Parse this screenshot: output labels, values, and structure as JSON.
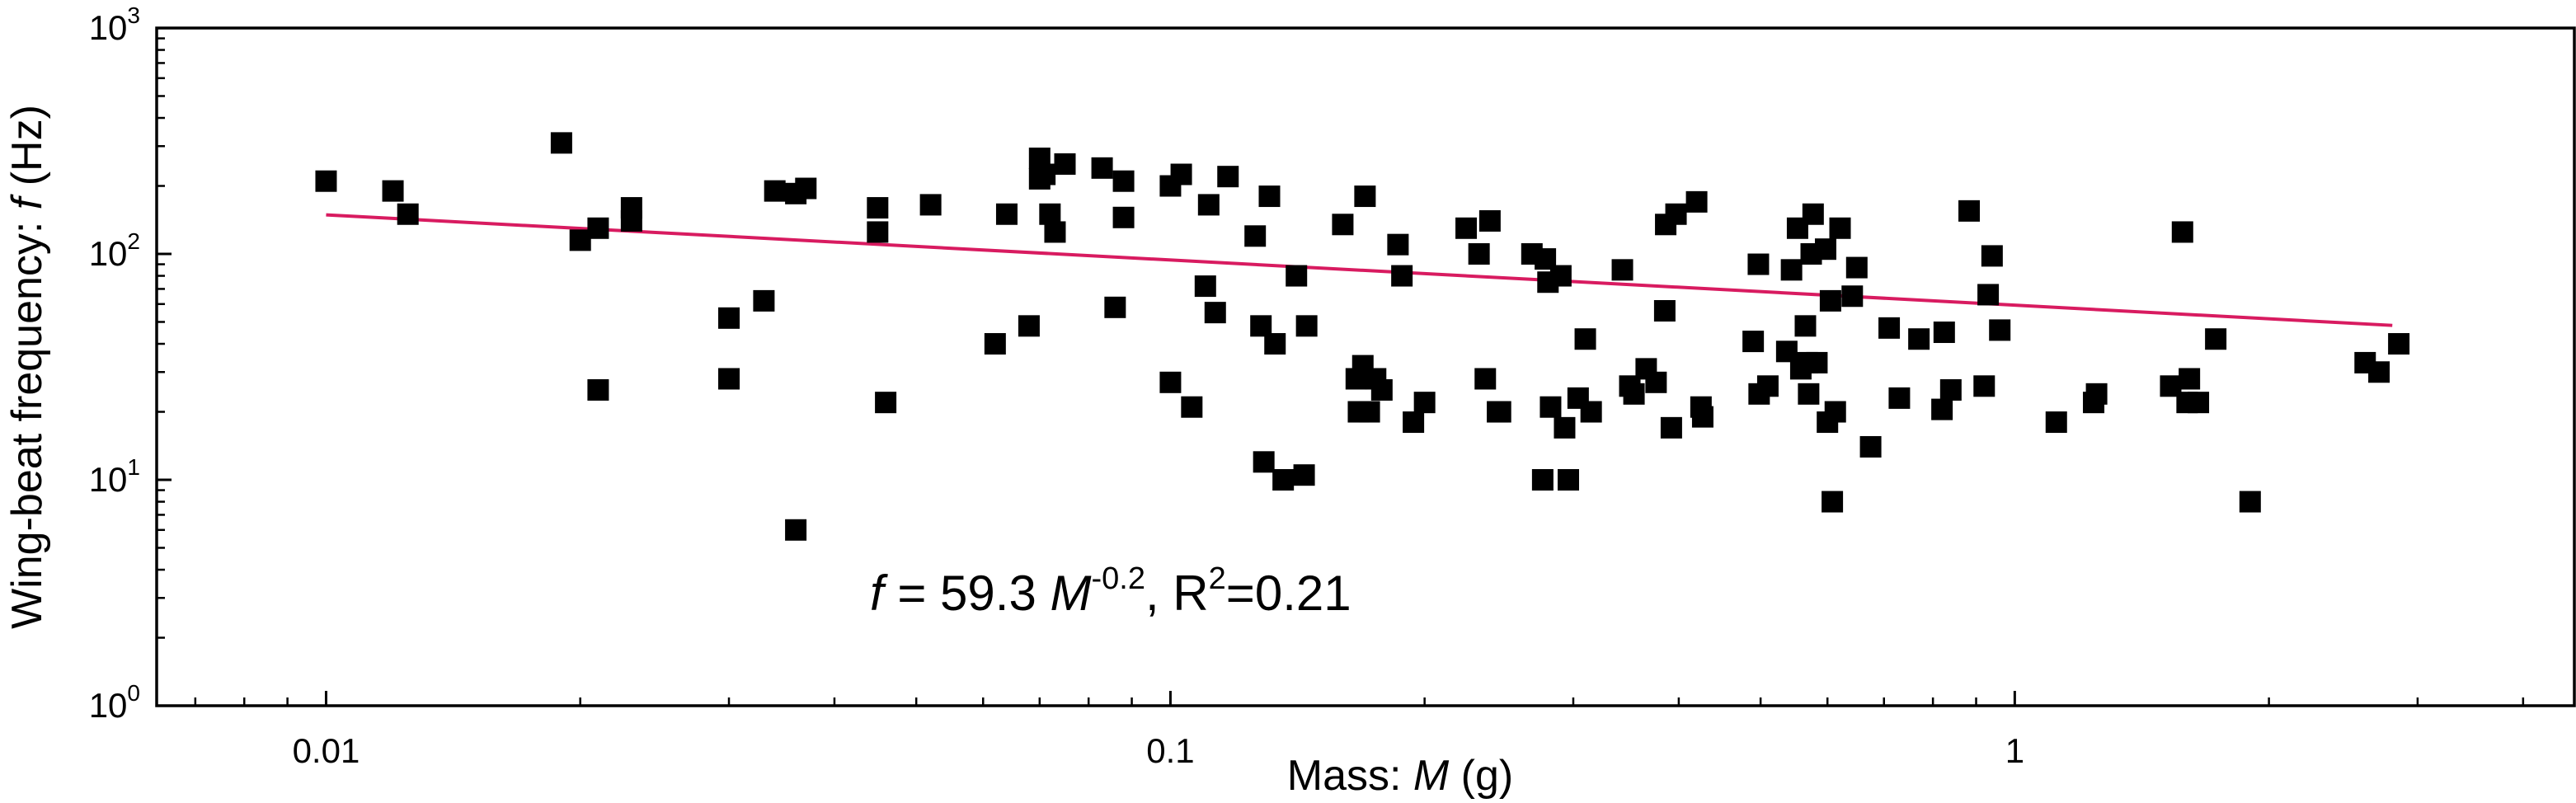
{
  "chart_data": {
    "type": "scatter",
    "xlabel_prefix": "Mass: ",
    "xlabel_var": "M",
    "xlabel_suffix": " (g)",
    "ylabel_prefix": "Wing-beat frequency: ",
    "ylabel_var": "f",
    "ylabel_suffix": " (Hz)",
    "xscale": "log",
    "yscale": "log",
    "xlim": [
      0.0063,
      4.6
    ],
    "ylim": [
      1,
      1000
    ],
    "x_ticks": [
      {
        "value": 0.01,
        "label": "0.01"
      },
      {
        "value": 0.1,
        "label": "0.1"
      },
      {
        "value": 1,
        "label": "1"
      }
    ],
    "y_ticks": [
      {
        "value": 1,
        "base": "10",
        "exp": "0"
      },
      {
        "value": 10,
        "base": "10",
        "exp": "1"
      },
      {
        "value": 100,
        "base": "10",
        "exp": "2"
      },
      {
        "value": 1000,
        "base": "10",
        "exp": "3"
      }
    ],
    "marker_color": "#000000",
    "fit_color": "#d81b60",
    "annotation_color": "#e8000b",
    "annotation": {
      "f": "f",
      "eq": " = 59.3 ",
      "M": "M",
      "exp": "-0.2",
      "r2a": ", R",
      "r2sup": "2",
      "r2b": "=0.21"
    },
    "fit": {
      "a": 59.3,
      "b": -0.2,
      "x_range": [
        0.01,
        2.8
      ]
    },
    "points": [
      [
        0.01,
        210
      ],
      [
        0.012,
        190
      ],
      [
        0.0125,
        150
      ],
      [
        0.019,
        310
      ],
      [
        0.02,
        115
      ],
      [
        0.021,
        130
      ],
      [
        0.021,
        25
      ],
      [
        0.023,
        160
      ],
      [
        0.023,
        140
      ],
      [
        0.03,
        52
      ],
      [
        0.03,
        28
      ],
      [
        0.033,
        62
      ],
      [
        0.034,
        190
      ],
      [
        0.036,
        6
      ],
      [
        0.036,
        185
      ],
      [
        0.037,
        195
      ],
      [
        0.045,
        160
      ],
      [
        0.045,
        125
      ],
      [
        0.046,
        22
      ],
      [
        0.052,
        165
      ],
      [
        0.062,
        40
      ],
      [
        0.064,
        150
      ],
      [
        0.068,
        48
      ],
      [
        0.07,
        265
      ],
      [
        0.07,
        215
      ],
      [
        0.071,
        225
      ],
      [
        0.072,
        150
      ],
      [
        0.073,
        125
      ],
      [
        0.075,
        250
      ],
      [
        0.083,
        240
      ],
      [
        0.086,
        58
      ],
      [
        0.088,
        210
      ],
      [
        0.088,
        145
      ],
      [
        0.1,
        200
      ],
      [
        0.1,
        27
      ],
      [
        0.103,
        225
      ],
      [
        0.106,
        21
      ],
      [
        0.11,
        72
      ],
      [
        0.111,
        165
      ],
      [
        0.113,
        55
      ],
      [
        0.117,
        220
      ],
      [
        0.126,
        120
      ],
      [
        0.128,
        48
      ],
      [
        0.129,
        12
      ],
      [
        0.131,
        180
      ],
      [
        0.133,
        40
      ],
      [
        0.136,
        10
      ],
      [
        0.141,
        80
      ],
      [
        0.144,
        10.5
      ],
      [
        0.145,
        48
      ],
      [
        0.16,
        135
      ],
      [
        0.166,
        28
      ],
      [
        0.167,
        20
      ],
      [
        0.169,
        32
      ],
      [
        0.17,
        180
      ],
      [
        0.172,
        20
      ],
      [
        0.175,
        28
      ],
      [
        0.178,
        25
      ],
      [
        0.186,
        110
      ],
      [
        0.188,
        80
      ],
      [
        0.194,
        18
      ],
      [
        0.2,
        22
      ],
      [
        0.224,
        130
      ],
      [
        0.232,
        100
      ],
      [
        0.236,
        28
      ],
      [
        0.239,
        140
      ],
      [
        0.244,
        20
      ],
      [
        0.246,
        20
      ],
      [
        0.268,
        100
      ],
      [
        0.276,
        10
      ],
      [
        0.278,
        95
      ],
      [
        0.28,
        75
      ],
      [
        0.282,
        21
      ],
      [
        0.29,
        80
      ],
      [
        0.293,
        17
      ],
      [
        0.296,
        10
      ],
      [
        0.304,
        23
      ],
      [
        0.31,
        42
      ],
      [
        0.315,
        20
      ],
      [
        0.343,
        85
      ],
      [
        0.35,
        26
      ],
      [
        0.354,
        24
      ],
      [
        0.366,
        31
      ],
      [
        0.376,
        27
      ],
      [
        0.385,
        56
      ],
      [
        0.386,
        135
      ],
      [
        0.392,
        17
      ],
      [
        0.397,
        150
      ],
      [
        0.42,
        170
      ],
      [
        0.425,
        21
      ],
      [
        0.427,
        19
      ],
      [
        0.49,
        41
      ],
      [
        0.497,
        90
      ],
      [
        0.498,
        24
      ],
      [
        0.51,
        26
      ],
      [
        0.537,
        37
      ],
      [
        0.544,
        85
      ],
      [
        0.553,
        130
      ],
      [
        0.558,
        31
      ],
      [
        0.565,
        48
      ],
      [
        0.568,
        33
      ],
      [
        0.57,
        24
      ],
      [
        0.574,
        100
      ],
      [
        0.577,
        150
      ],
      [
        0.583,
        33
      ],
      [
        0.597,
        105
      ],
      [
        0.6,
        18
      ],
      [
        0.605,
        62
      ],
      [
        0.608,
        8
      ],
      [
        0.613,
        20
      ],
      [
        0.621,
        130
      ],
      [
        0.642,
        65
      ],
      [
        0.65,
        87
      ],
      [
        0.675,
        14
      ],
      [
        0.71,
        47
      ],
      [
        0.73,
        23
      ],
      [
        0.77,
        42
      ],
      [
        0.82,
        20.5
      ],
      [
        0.825,
        45
      ],
      [
        0.84,
        25
      ],
      [
        0.883,
        155
      ],
      [
        0.92,
        26
      ],
      [
        0.93,
        66
      ],
      [
        0.94,
        98
      ],
      [
        0.96,
        46
      ],
      [
        1.12,
        18
      ],
      [
        1.24,
        22
      ],
      [
        1.25,
        24
      ],
      [
        1.53,
        26
      ],
      [
        1.58,
        125
      ],
      [
        1.6,
        22
      ],
      [
        1.61,
        28
      ],
      [
        1.65,
        22
      ],
      [
        1.73,
        42
      ],
      [
        1.9,
        8
      ],
      [
        2.6,
        33
      ],
      [
        2.7,
        30
      ],
      [
        2.85,
        40
      ]
    ]
  }
}
